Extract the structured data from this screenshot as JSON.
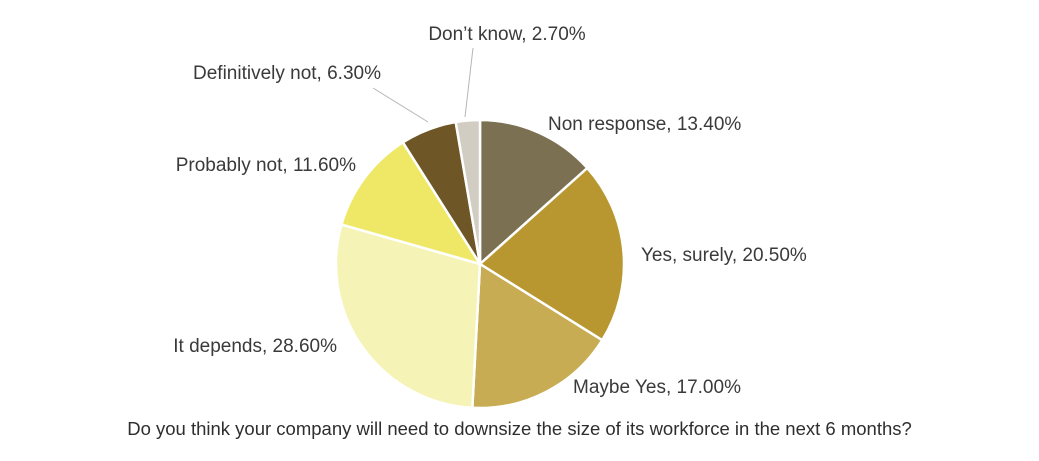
{
  "chart_data": {
    "type": "pie",
    "slices": [
      {
        "label": "Non response, 13.40%",
        "category": "Non response",
        "value": 13.4,
        "color": "#7b7052"
      },
      {
        "label": "Yes, surely, 20.50%",
        "category": "Yes, surely",
        "value": 20.5,
        "color": "#b89731"
      },
      {
        "label": "Maybe Yes, 17.00%",
        "category": "Maybe Yes",
        "value": 17.0,
        "color": "#c8ac54"
      },
      {
        "label": "It depends, 28.60%",
        "category": "It depends",
        "value": 28.6,
        "color": "#f5f3b6"
      },
      {
        "label": "Probably not, 11.60%",
        "category": "Probably not",
        "value": 11.6,
        "color": "#eee866"
      },
      {
        "label": "Definitively not, 6.30%",
        "category": "Definitively not",
        "value": 6.3,
        "color": "#6e5626"
      },
      {
        "label": "Don’t know, 2.70%",
        "category": "Don’t know",
        "value": 2.7,
        "color": "#d1cdc2"
      }
    ],
    "start": "12 o'clock",
    "direction": "clockwise",
    "legend": "none",
    "caption": "Do you think your company will need to downsize the size of its workforce in the next 6 months?"
  }
}
